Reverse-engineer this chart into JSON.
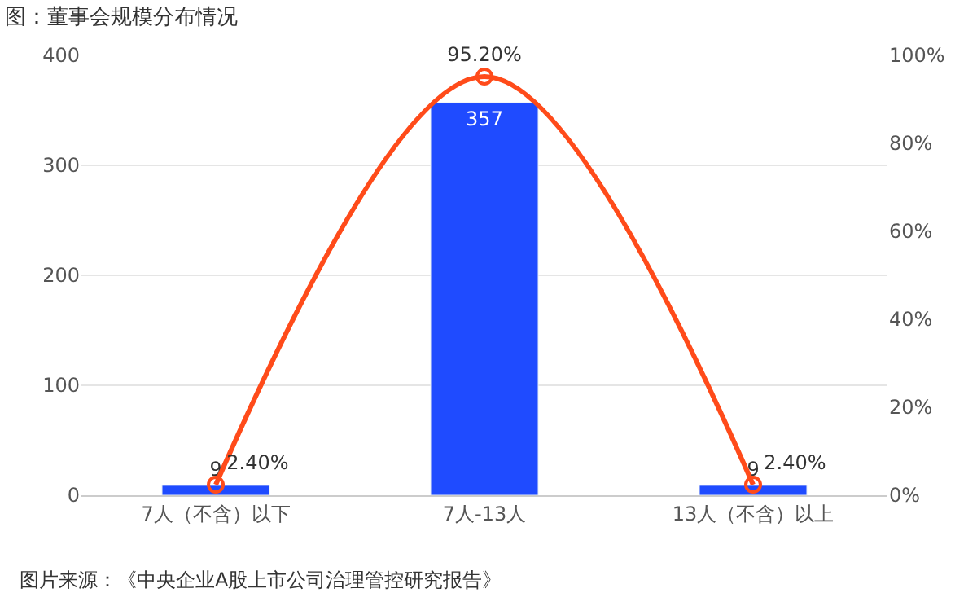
{
  "chart_data": {
    "type": "bar",
    "title": "图：董事会规模分布情况",
    "categories": [
      "7人（不含）以下",
      "7人-13人",
      "13人（不含）以上"
    ],
    "series": [
      {
        "color": "#1f4bff",
        "values": [
          9,
          357,
          9
        ],
        "value_labels": [
          "9",
          "357",
          "9"
        ]
      },
      {
        "type": "line",
        "axis": "y2",
        "color": "#ff4b1a",
        "values": [
          2.4,
          95.2,
          2.4
        ],
        "value_labels": [
          "2.40%",
          "95.20%",
          "2.40%"
        ],
        "marker": "circle"
      }
    ],
    "ylim": [
      0,
      400
    ],
    "yticks": [
      0,
      100,
      200,
      300,
      400
    ],
    "y2lim": [
      0,
      100
    ],
    "y2ticks": [
      {
        "value": 0,
        "label": "0%"
      },
      {
        "value": 20,
        "label": "20%"
      },
      {
        "value": 40,
        "label": "40%"
      },
      {
        "value": 60,
        "label": "60%"
      },
      {
        "value": 80,
        "label": "80%"
      },
      {
        "value": 100,
        "label": "100%"
      }
    ],
    "grid": "y",
    "annotations": [
      "图片来源：《中央企业A股上市公司治理管控研究报告》"
    ]
  }
}
